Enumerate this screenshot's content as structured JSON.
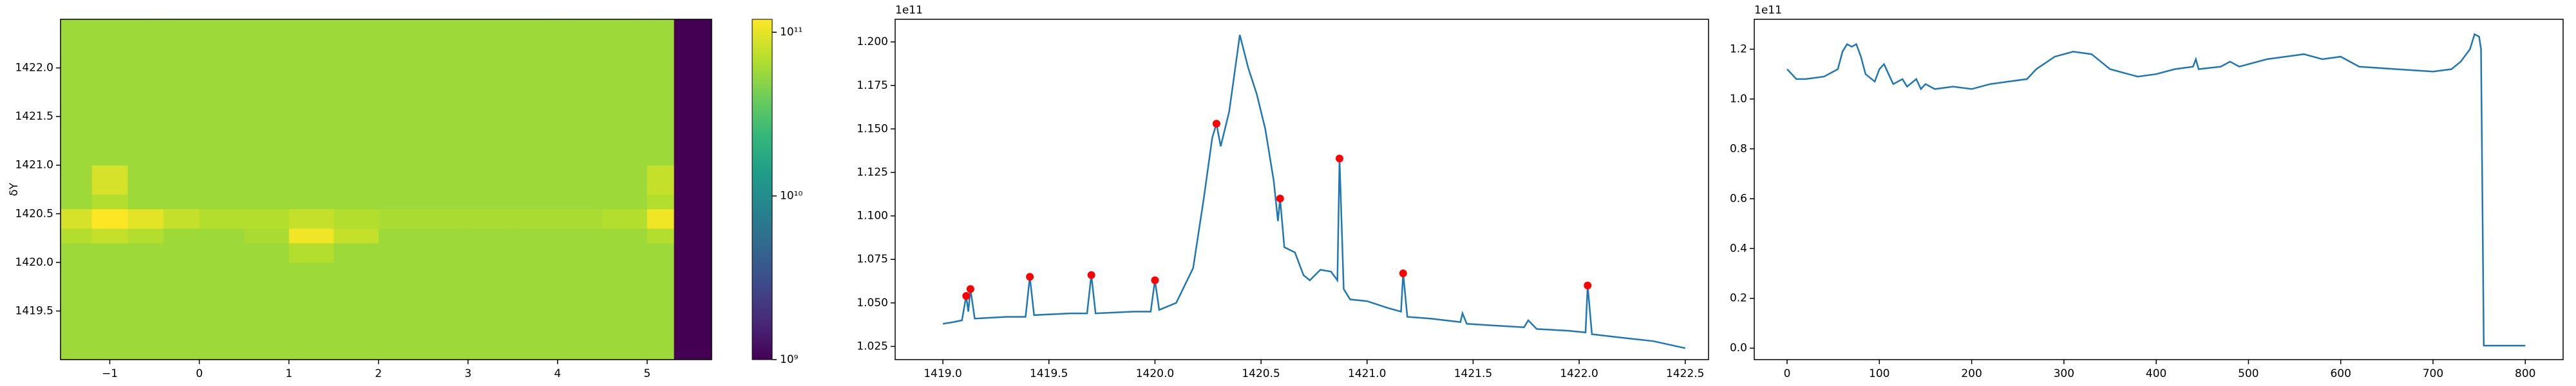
{
  "chart_data": [
    {
      "type": "heatmap",
      "ylabel": "δY",
      "colormap": "viridis",
      "log_color": true,
      "xlim": [
        -1.55,
        5.72
      ],
      "ylim": [
        1419.0,
        1422.5
      ],
      "xticks": [
        {
          "value": -1,
          "label": "−1"
        },
        0,
        1,
        2,
        3,
        4,
        5
      ],
      "yticks": [
        1419.5,
        {
          "value": 1420,
          "label": "1420.0"
        },
        1420.5,
        {
          "value": 1421,
          "label": "1421.0"
        },
        1421.5,
        {
          "value": 1422,
          "label": "1422.0"
        }
      ],
      "x_edges": [
        -1.55,
        -1.2,
        -0.8,
        -0.4,
        0,
        0.5,
        1.0,
        1.5,
        2.0,
        2.5,
        3.0,
        3.5,
        4.0,
        4.5,
        5.0,
        5.3,
        5.72
      ],
      "y_edges": [
        1419.0,
        1419.5,
        1420.0,
        1420.2,
        1420.35,
        1420.55,
        1420.7,
        1421.0,
        1421.5,
        1422.0,
        1422.5
      ],
      "z": [
        [
          60000000000.0,
          60000000000.0,
          60000000000.0,
          60000000000.0,
          60000000000.0,
          60000000000.0,
          60000000000.0,
          60000000000.0,
          60000000000.0,
          60000000000.0,
          60000000000.0,
          60000000000.0,
          60000000000.0,
          60000000000.0,
          60000000000.0,
          1000000000.0
        ],
        [
          60000000000.0,
          60000000000.0,
          60000000000.0,
          60000000000.0,
          60000000000.0,
          60000000000.0,
          60000000000.0,
          60000000000.0,
          60000000000.0,
          60000000000.0,
          60000000000.0,
          60000000000.0,
          60000000000.0,
          60000000000.0,
          60000000000.0,
          1000000000.0
        ],
        [
          60000000000.0,
          60000000000.0,
          60000000000.0,
          60000000000.0,
          60000000000.0,
          60000000000.0,
          70000000000.0,
          60000000000.0,
          60000000000.0,
          60000000000.0,
          60000000000.0,
          60000000000.0,
          60000000000.0,
          60000000000.0,
          60000000000.0,
          1000000000.0
        ],
        [
          70000000000.0,
          80000000000.0,
          70000000000.0,
          60000000000.0,
          60000000000.0,
          65000000000.0,
          110000000000.0,
          80000000000.0,
          60000000000.0,
          60000000000.0,
          60000000000.0,
          60000000000.0,
          60000000000.0,
          60000000000.0,
          70000000000.0,
          1000000000.0
        ],
        [
          90000000000.0,
          120000000000.0,
          100000000000.0,
          80000000000.0,
          70000000000.0,
          70000000000.0,
          80000000000.0,
          70000000000.0,
          65000000000.0,
          65000000000.0,
          65000000000.0,
          65000000000.0,
          65000000000.0,
          70000000000.0,
          110000000000.0,
          1000000000.0
        ],
        [
          60000000000.0,
          70000000000.0,
          60000000000.0,
          60000000000.0,
          60000000000.0,
          60000000000.0,
          60000000000.0,
          60000000000.0,
          60000000000.0,
          60000000000.0,
          60000000000.0,
          60000000000.0,
          60000000000.0,
          60000000000.0,
          70000000000.0,
          1000000000.0
        ],
        [
          60000000000.0,
          90000000000.0,
          60000000000.0,
          60000000000.0,
          60000000000.0,
          60000000000.0,
          60000000000.0,
          60000000000.0,
          60000000000.0,
          60000000000.0,
          60000000000.0,
          60000000000.0,
          60000000000.0,
          60000000000.0,
          80000000000.0,
          1000000000.0
        ],
        [
          60000000000.0,
          60000000000.0,
          60000000000.0,
          60000000000.0,
          60000000000.0,
          60000000000.0,
          60000000000.0,
          60000000000.0,
          60000000000.0,
          60000000000.0,
          60000000000.0,
          60000000000.0,
          60000000000.0,
          60000000000.0,
          60000000000.0,
          1000000000.0
        ],
        [
          60000000000.0,
          60000000000.0,
          60000000000.0,
          60000000000.0,
          60000000000.0,
          60000000000.0,
          60000000000.0,
          60000000000.0,
          60000000000.0,
          60000000000.0,
          60000000000.0,
          60000000000.0,
          60000000000.0,
          60000000000.0,
          60000000000.0,
          1000000000.0
        ],
        [
          60000000000.0,
          60000000000.0,
          60000000000.0,
          60000000000.0,
          60000000000.0,
          60000000000.0,
          60000000000.0,
          60000000000.0,
          60000000000.0,
          60000000000.0,
          60000000000.0,
          60000000000.0,
          60000000000.0,
          60000000000.0,
          60000000000.0,
          1000000000.0
        ]
      ],
      "clim": [
        1000000000.0,
        120000000000.0
      ],
      "cticks": [
        {
          "value": 1000000000.0,
          "label": "10⁹"
        },
        {
          "value": 10000000000.0,
          "label": "10¹⁰"
        },
        {
          "value": 100000000000.0,
          "label": "10¹¹"
        }
      ]
    },
    {
      "type": "line",
      "y_offset": "1e11",
      "xlim": [
        1418.775,
        1422.61
      ],
      "ylim": [
        1.0174,
        1.213
      ],
      "xticks": [
        {
          "value": 1419,
          "label": "1419.0"
        },
        1419.5,
        {
          "value": 1420,
          "label": "1420.0"
        },
        1420.5,
        {
          "value": 1421,
          "label": "1421.0"
        },
        1421.5,
        {
          "value": 1422,
          "label": "1422.0"
        },
        1422.5
      ],
      "yticks": [
        1.025,
        {
          "value": 1.05,
          "label": "1.050"
        },
        1.075,
        {
          "value": 1.1,
          "label": "1.100"
        },
        1.125,
        {
          "value": 1.15,
          "label": "1.150"
        },
        1.175,
        {
          "value": 1.2,
          "label": "1.200"
        }
      ],
      "series": [
        {
          "color": "#1f77b4",
          "marker": false,
          "x": [
            1419.0,
            1419.05,
            1419.09,
            1419.11,
            1419.12,
            1419.13,
            1419.15,
            1419.3,
            1419.39,
            1419.41,
            1419.43,
            1419.6,
            1419.68,
            1419.7,
            1419.72,
            1419.9,
            1419.98,
            1420.0,
            1420.02,
            1420.1,
            1420.18,
            1420.23,
            1420.27,
            1420.29,
            1420.31,
            1420.35,
            1420.4,
            1420.44,
            1420.48,
            1420.52,
            1420.56,
            1420.58,
            1420.59,
            1420.61,
            1420.66,
            1420.7,
            1420.73,
            1420.78,
            1420.83,
            1420.86,
            1420.87,
            1420.89,
            1420.92,
            1421.0,
            1421.1,
            1421.16,
            1421.17,
            1421.19,
            1421.3,
            1421.44,
            1421.45,
            1421.47,
            1421.6,
            1421.74,
            1421.76,
            1421.8,
            1421.95,
            1422.03,
            1422.04,
            1422.06,
            1422.2,
            1422.35,
            1422.5
          ],
          "values": [
            1.038,
            1.039,
            1.04,
            1.054,
            1.045,
            1.058,
            1.041,
            1.042,
            1.042,
            1.065,
            1.043,
            1.044,
            1.044,
            1.066,
            1.044,
            1.045,
            1.045,
            1.063,
            1.046,
            1.05,
            1.07,
            1.11,
            1.145,
            1.153,
            1.14,
            1.16,
            1.204,
            1.185,
            1.17,
            1.15,
            1.12,
            1.097,
            1.11,
            1.082,
            1.079,
            1.066,
            1.063,
            1.069,
            1.068,
            1.063,
            1.133,
            1.058,
            1.052,
            1.051,
            1.047,
            1.045,
            1.067,
            1.042,
            1.041,
            1.039,
            1.044,
            1.038,
            1.037,
            1.036,
            1.04,
            1.035,
            1.034,
            1.033,
            1.06,
            1.032,
            1.03,
            1.028,
            1.024
          ]
        },
        {
          "color": "#ff0000",
          "marker": true,
          "x": [
            1419.11,
            1419.13,
            1419.41,
            1419.7,
            1420.0,
            1420.29,
            1420.59,
            1420.87,
            1421.17,
            1422.04
          ],
          "values": [
            1.054,
            1.058,
            1.065,
            1.066,
            1.063,
            1.153,
            1.11,
            1.133,
            1.067,
            1.06
          ]
        }
      ]
    },
    {
      "type": "line",
      "y_offset": "1e11",
      "xlim": [
        -35.6,
        841
      ],
      "ylim": [
        -0.046,
        1.32
      ],
      "xticks": [
        0,
        100,
        200,
        300,
        400,
        500,
        600,
        700,
        800
      ],
      "yticks": [
        {
          "value": 0,
          "label": "0.0"
        },
        0.2,
        0.4,
        0.6,
        0.8,
        {
          "value": 1,
          "label": "1.0"
        },
        1.2
      ],
      "series": [
        {
          "color": "#1f77b4",
          "marker": false,
          "x": [
            0,
            5,
            10,
            20,
            40,
            55,
            60,
            65,
            70,
            75,
            80,
            85,
            95,
            100,
            105,
            110,
            115,
            125,
            130,
            140,
            145,
            150,
            160,
            180,
            200,
            220,
            240,
            260,
            270,
            290,
            310,
            330,
            350,
            380,
            400,
            420,
            440,
            443,
            446,
            470,
            480,
            490,
            520,
            540,
            560,
            580,
            600,
            620,
            660,
            700,
            720,
            730,
            740,
            745,
            750,
            752,
            755,
            780,
            800
          ],
          "values": [
            1.12,
            1.1,
            1.08,
            1.08,
            1.09,
            1.12,
            1.19,
            1.22,
            1.21,
            1.22,
            1.17,
            1.1,
            1.07,
            1.12,
            1.14,
            1.1,
            1.06,
            1.08,
            1.05,
            1.08,
            1.04,
            1.06,
            1.04,
            1.05,
            1.04,
            1.06,
            1.07,
            1.08,
            1.12,
            1.17,
            1.19,
            1.18,
            1.12,
            1.09,
            1.1,
            1.12,
            1.13,
            1.16,
            1.12,
            1.13,
            1.15,
            1.13,
            1.16,
            1.17,
            1.18,
            1.16,
            1.17,
            1.13,
            1.12,
            1.11,
            1.12,
            1.15,
            1.2,
            1.26,
            1.25,
            1.2,
            0.01,
            0.01,
            0.01
          ]
        }
      ]
    }
  ]
}
